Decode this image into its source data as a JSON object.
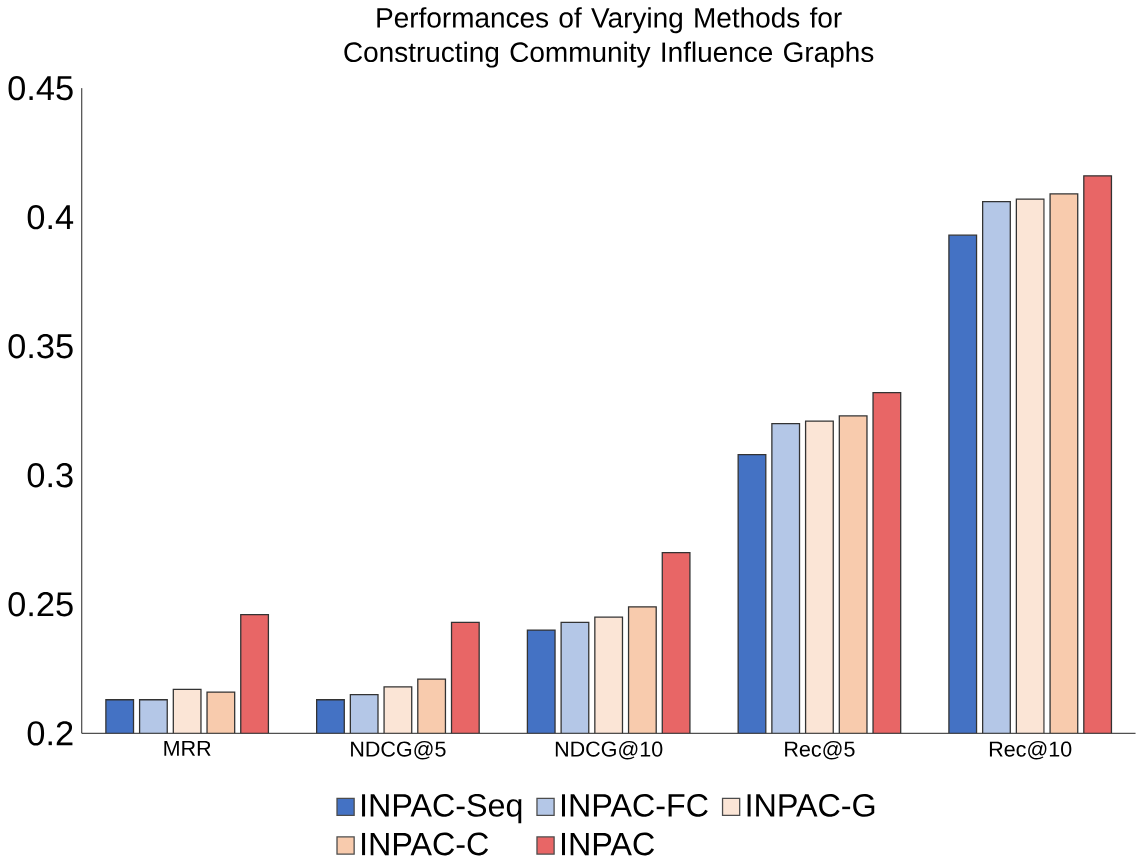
{
  "chart_data": {
    "type": "bar",
    "title": "Performances of Varying Methods for Constructing Community Influence Graphs",
    "categories": [
      "MRR",
      "NDCG@5",
      "NDCG@10",
      "Rec@5",
      "Rec@10"
    ],
    "series": [
      {
        "name": "INPAC-Seq",
        "color": "#4472c4",
        "values": [
          0.213,
          0.213,
          0.24,
          0.308,
          0.393
        ]
      },
      {
        "name": "INPAC-FC",
        "color": "#b4c7e7",
        "values": [
          0.213,
          0.215,
          0.243,
          0.32,
          0.406
        ]
      },
      {
        "name": "INPAC-G",
        "color": "#fbe5d6",
        "values": [
          0.217,
          0.218,
          0.245,
          0.321,
          0.407
        ]
      },
      {
        "name": "INPAC-C",
        "color": "#f8cbad",
        "values": [
          0.216,
          0.221,
          0.249,
          0.323,
          0.409
        ]
      },
      {
        "name": "INPAC",
        "color": "#e86666",
        "values": [
          0.246,
          0.243,
          0.27,
          0.332,
          0.416
        ]
      }
    ],
    "ylim": [
      0.2,
      0.45
    ],
    "yticks": [
      0.2,
      0.25,
      0.3,
      0.35,
      0.4,
      0.45
    ],
    "grid": false,
    "legend": "bottom"
  }
}
